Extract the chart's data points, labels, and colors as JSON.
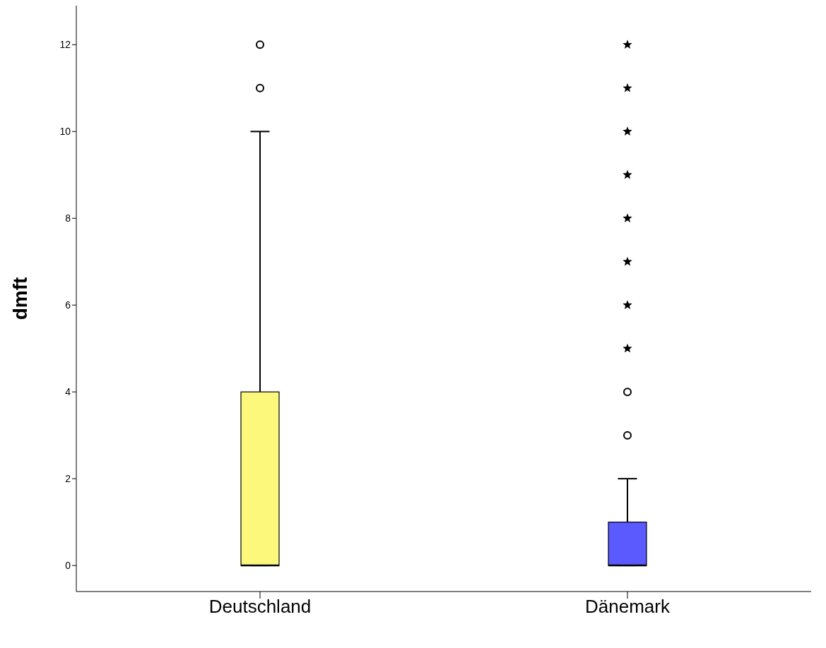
{
  "chart_data": {
    "type": "box",
    "ylabel": "dmft",
    "categories": [
      "Deutschland",
      "Dänemark"
    ],
    "colors": [
      "#fbf87c",
      "#5a5afe"
    ],
    "boxes": [
      {
        "low": 0,
        "q1": 0,
        "median": 0,
        "q3": 4,
        "high": 10,
        "outliers": [
          11,
          12
        ]
      },
      {
        "low": 0,
        "q1": 0,
        "median": 0,
        "q3": 1,
        "high": 2,
        "outliers": [
          3,
          4,
          5,
          6,
          7,
          8,
          9,
          10,
          11,
          12
        ]
      }
    ],
    "ylim": [
      -0.6,
      12.9
    ],
    "yticks": [
      0,
      2,
      4,
      6,
      8,
      10,
      12
    ],
    "grid": false
  }
}
